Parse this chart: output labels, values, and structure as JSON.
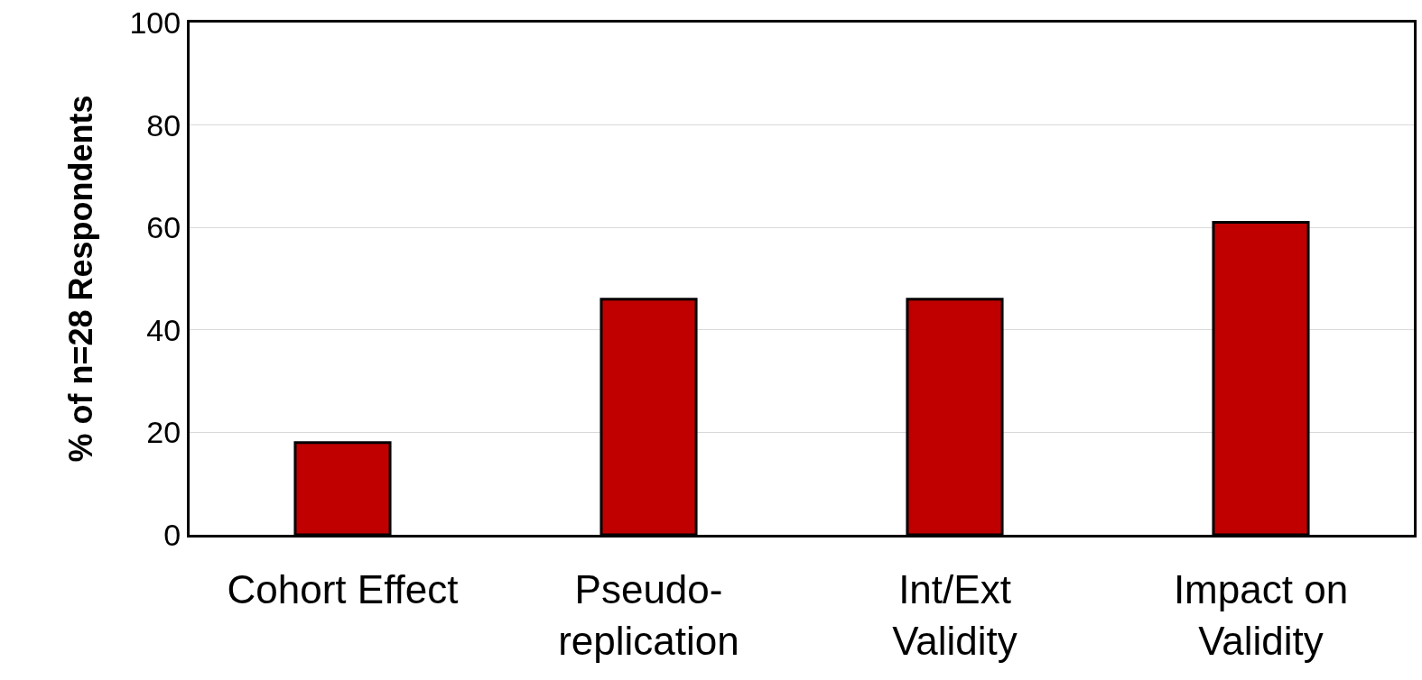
{
  "chart_data": {
    "type": "bar",
    "ylabel": "% of n=28 Respondents",
    "categories": [
      "Cohort Effect",
      "Pseudo-\nreplication",
      "Int/Ext\nValidity",
      "Impact on\nValidity"
    ],
    "values": [
      18,
      46,
      46,
      61
    ],
    "color": "#c00000",
    "ylim": [
      0,
      100
    ],
    "yticks": [
      0,
      20,
      40,
      60,
      80,
      100
    ],
    "grid": "y",
    "legend": false
  }
}
